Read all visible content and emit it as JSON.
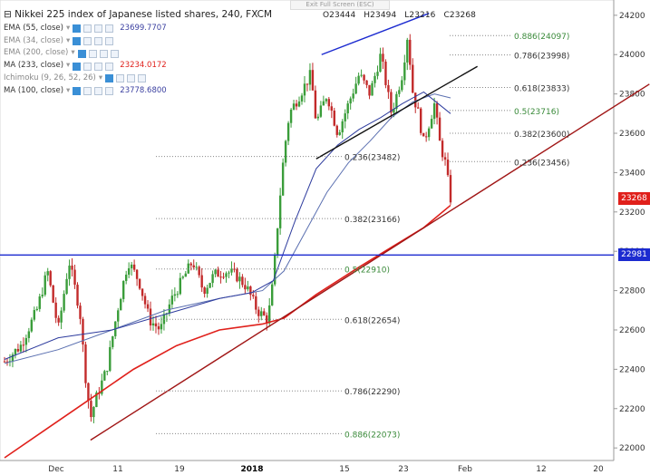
{
  "header": {
    "title": "Nikkei 225 index of Japanese listed shares, 240, FXCM",
    "open": "O23444",
    "high": "H23494",
    "low": "L23216",
    "close": "C23268",
    "exit_fullscreen": "Exit Full Screen (ESC)"
  },
  "indicators": [
    {
      "label": "EMA (55, close)",
      "value": "23699.7707",
      "color": "#3a3fa0",
      "active": true
    },
    {
      "label": "EMA (34, close)",
      "value": "",
      "color": "#999999",
      "active": false
    },
    {
      "label": "EMA (200, close)",
      "value": "",
      "color": "#999999",
      "active": false
    },
    {
      "label": "MA (233, close)",
      "value": "23234.0172",
      "color": "#e0201b",
      "active": true
    },
    {
      "label": "Ichimoku (9, 26, 52, 26)",
      "value": "",
      "color": "#999999",
      "active": false
    },
    {
      "label": "MA (100, close)",
      "value": "23778.6800",
      "color": "#3a3fa0",
      "active": true
    }
  ],
  "price_tags": {
    "last": "23268",
    "level": "22981"
  },
  "colors": {
    "up": "#3a9d3a",
    "down": "#c22a2a",
    "ema55": "#2e3c9e",
    "ma100": "#5a6fb0",
    "ma233": "#e0201b",
    "trend": "#a01515",
    "hline": "#1c2bd0",
    "fib_green": "#3a8a3a"
  },
  "chart_data": {
    "type": "candlestick",
    "title": "Nikkei 225 index of Japanese listed shares, 240, FXCM",
    "ylim": [
      21950,
      24250
    ],
    "y_ticks": [
      22000,
      22200,
      22400,
      22600,
      22800,
      23000,
      23200,
      23400,
      23600,
      23800,
      24000,
      24200
    ],
    "x_ticks": [
      "Dec",
      "11",
      "19",
      "2018",
      "15",
      "23",
      "Feb",
      "12",
      "20"
    ],
    "fib_left": [
      {
        "label": "0.236(23482)",
        "value": 23482
      },
      {
        "label": "0.382(23166)",
        "value": 23166
      },
      {
        "label": "0.5(22910)",
        "value": 22910
      },
      {
        "label": "0.618(22654)",
        "value": 22654
      },
      {
        "label": "0.786(22290)",
        "value": 22290
      },
      {
        "label": "0.886(22073)",
        "value": 22073
      }
    ],
    "fib_right": [
      {
        "label": "0.886(24097)",
        "value": 24097
      },
      {
        "label": "0.786(23998)",
        "value": 23998
      },
      {
        "label": "0.618(23833)",
        "value": 23833
      },
      {
        "label": "0.5(23716)",
        "value": 23716
      },
      {
        "label": "0.382(23600)",
        "value": 23600
      },
      {
        "label": "0.236(23456)",
        "value": 23456
      }
    ],
    "horizontal_level": 22981,
    "last_price": 23268,
    "ohlc": {
      "open": 23444,
      "high": 23494,
      "low": 23216,
      "close": 23268
    },
    "close_path": [
      [
        0,
        22440
      ],
      [
        3,
        22520
      ],
      [
        6,
        22700
      ],
      [
        8,
        22900
      ],
      [
        10,
        22600
      ],
      [
        12,
        22950
      ],
      [
        14,
        22700
      ],
      [
        15,
        22380
      ],
      [
        16,
        22150
      ],
      [
        17,
        22250
      ],
      [
        19,
        22400
      ],
      [
        21,
        22700
      ],
      [
        23,
        22950
      ],
      [
        25,
        22850
      ],
      [
        27,
        22650
      ],
      [
        29,
        22600
      ],
      [
        31,
        22750
      ],
      [
        34,
        22900
      ],
      [
        35,
        22950
      ],
      [
        37,
        22800
      ],
      [
        39,
        22880
      ],
      [
        41,
        22900
      ],
      [
        43,
        22880
      ],
      [
        45,
        22820
      ],
      [
        47,
        22700
      ],
      [
        49,
        22650
      ],
      [
        50,
        22850
      ],
      [
        51,
        23200
      ],
      [
        52,
        23500
      ],
      [
        53,
        23700
      ],
      [
        55,
        23800
      ],
      [
        57,
        23900
      ],
      [
        58,
        23650
      ],
      [
        60,
        23800
      ],
      [
        62,
        23600
      ],
      [
        64,
        23750
      ],
      [
        66,
        23900
      ],
      [
        68,
        23800
      ],
      [
        70,
        24000
      ],
      [
        72,
        23700
      ],
      [
        74,
        23900
      ],
      [
        75,
        24100
      ],
      [
        76,
        23800
      ],
      [
        77,
        23700
      ],
      [
        78,
        23550
      ],
      [
        79,
        23650
      ],
      [
        80,
        23750
      ],
      [
        81,
        23550
      ],
      [
        82,
        23450
      ],
      [
        83,
        23268
      ]
    ],
    "ema55_path": [
      [
        0,
        22450
      ],
      [
        10,
        22560
      ],
      [
        20,
        22600
      ],
      [
        30,
        22680
      ],
      [
        40,
        22760
      ],
      [
        46,
        22790
      ],
      [
        50,
        22850
      ],
      [
        54,
        23150
      ],
      [
        58,
        23420
      ],
      [
        62,
        23540
      ],
      [
        66,
        23620
      ],
      [
        70,
        23680
      ],
      [
        74,
        23750
      ],
      [
        78,
        23810
      ],
      [
        83,
        23700
      ]
    ],
    "ma100_path": [
      [
        0,
        22430
      ],
      [
        10,
        22500
      ],
      [
        20,
        22600
      ],
      [
        30,
        22700
      ],
      [
        40,
        22760
      ],
      [
        48,
        22800
      ],
      [
        52,
        22900
      ],
      [
        56,
        23100
      ],
      [
        60,
        23300
      ],
      [
        64,
        23450
      ],
      [
        68,
        23560
      ],
      [
        72,
        23680
      ],
      [
        76,
        23760
      ],
      [
        80,
        23800
      ],
      [
        83,
        23780
      ]
    ],
    "ma233_path": [
      [
        0,
        21950
      ],
      [
        8,
        22100
      ],
      [
        16,
        22250
      ],
      [
        24,
        22400
      ],
      [
        32,
        22520
      ],
      [
        40,
        22600
      ],
      [
        48,
        22630
      ],
      [
        52,
        22660
      ],
      [
        58,
        22780
      ],
      [
        66,
        22920
      ],
      [
        72,
        23020
      ],
      [
        78,
        23120
      ],
      [
        83,
        23234
      ]
    ],
    "trendlines": [
      {
        "name": "support",
        "from": [
          16,
          22040
        ],
        "to": [
          120,
          23850
        ]
      },
      {
        "name": "upper-channel",
        "from": [
          59,
          24000
        ],
        "to": [
          79,
          24210
        ]
      },
      {
        "name": "lower-channel",
        "from": [
          58,
          23470
        ],
        "to": [
          88,
          23940
        ]
      }
    ]
  }
}
